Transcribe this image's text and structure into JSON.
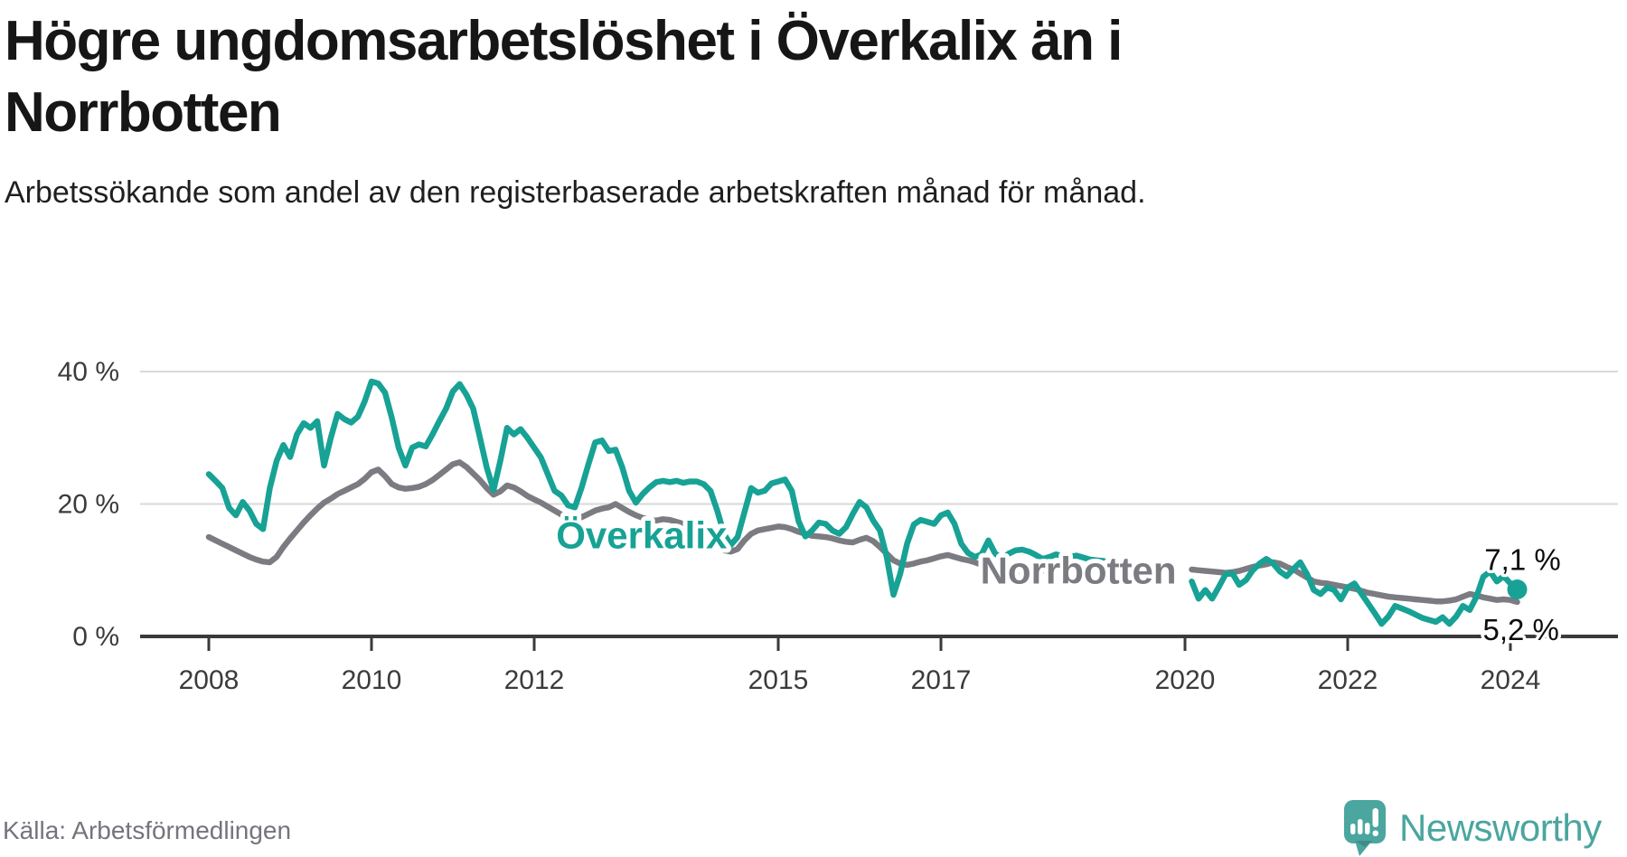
{
  "header": {
    "title_line1": "Högre ungdomsarbetslöshet i Överkalix än i",
    "title_line2": "Norrbotten",
    "subtitle": "Arbetssökande som andel av den registerbaserade arbetskraften månad för månad."
  },
  "footer": {
    "source": "Källa: Arbetsförmedlingen",
    "brand": "Newsworthy"
  },
  "colors": {
    "overkalix": "#17a295",
    "norrbotten": "#7b7b82",
    "grid": "#d9d9d9",
    "axis": "#3a3a3a",
    "tick_text": "#3b3b3b",
    "end_label": "#0d0d0d",
    "logo_teal": "#4aa69f"
  },
  "chart_data": {
    "type": "line",
    "title": "Högre ungdomsarbetslöshet i Överkalix än i Norrbotten",
    "subtitle": "Arbetssökande som andel av den registerbaserade arbetskraften månad för månad.",
    "unit": "%",
    "x_axis": {
      "ticks": [
        2008,
        2010,
        2012,
        2015,
        2017,
        2020,
        2022,
        2024
      ],
      "range": [
        2007.15,
        2025.3
      ]
    },
    "y_axis": {
      "ticks": [
        {
          "value": 0,
          "label": "0 %"
        },
        {
          "value": 20,
          "label": "20 %"
        },
        {
          "value": 40,
          "label": "40 %"
        }
      ],
      "range": [
        0,
        42
      ],
      "grid": true
    },
    "data_gap_note": "no data between Jan 2019 and Feb 2020",
    "series": [
      {
        "name": "Norrbotten",
        "color": "#7b7b82",
        "end_dot": false,
        "segments": [
          {
            "start_year": 2008,
            "start_month": 1,
            "values": [
              15.0,
              14.5,
              14.0,
              13.5,
              13.0,
              12.5,
              12.0,
              11.6,
              11.3,
              11.2,
              12.0,
              13.5,
              14.8,
              16.0,
              17.2,
              18.3,
              19.3,
              20.2,
              20.8,
              21.5,
              22.0,
              22.5,
              23.0,
              23.8,
              24.8,
              25.2,
              24.2,
              23.0,
              22.5,
              22.3,
              22.4,
              22.6,
              23.0,
              23.6,
              24.4,
              25.2,
              26.0,
              26.3,
              25.6,
              24.6,
              23.6,
              22.4,
              21.4,
              21.9,
              22.8,
              22.5,
              21.9,
              21.2,
              20.7,
              20.2,
              19.6,
              19.0,
              18.4,
              17.9,
              17.7,
              18.0,
              18.5,
              19.0,
              19.3,
              19.5,
              20.0,
              19.4,
              18.8,
              18.3,
              17.9,
              17.6,
              17.5,
              17.7,
              17.6,
              17.3,
              17.0,
              16.7,
              16.5,
              15.8,
              15.0,
              13.8,
              13.0,
              12.8,
              13.2,
              14.5,
              15.5,
              16.0,
              16.2,
              16.4,
              16.6,
              16.5,
              16.2,
              15.8,
              15.5,
              15.2,
              15.1,
              15.0,
              14.8,
              14.5,
              14.3,
              14.2,
              14.6,
              14.9,
              14.4,
              13.5,
              12.5,
              11.5,
              11.0,
              10.8,
              11.0,
              11.3,
              11.5,
              11.8,
              12.1,
              12.3,
              12.0,
              11.7,
              11.5,
              11.2,
              10.8,
              10.5,
              10.2,
              9.9,
              9.7,
              9.6,
              9.6,
              9.7,
              9.8,
              9.9,
              10.0,
              10.1,
              10.2,
              10.2,
              10.3,
              10.3,
              10.4,
              10.4,
              10.4
            ]
          },
          {
            "start_year": 2020,
            "start_month": 2,
            "values": [
              10.1,
              10.0,
              9.9,
              9.8,
              9.7,
              9.6,
              9.7,
              9.9,
              10.2,
              10.5,
              10.7,
              10.9,
              11.2,
              11.0,
              10.5,
              10.1,
              9.5,
              8.9,
              8.3,
              8.1,
              8.0,
              7.8,
              7.6,
              7.4,
              7.2,
              6.9,
              6.6,
              6.4,
              6.2,
              6.0,
              5.9,
              5.8,
              5.7,
              5.6,
              5.5,
              5.4,
              5.3,
              5.3,
              5.4,
              5.6,
              6.0,
              6.4,
              6.2,
              5.9,
              5.7,
              5.5,
              5.6,
              5.5,
              5.2
            ]
          }
        ]
      },
      {
        "name": "Överkalix",
        "color": "#17a295",
        "end_dot": true,
        "segments": [
          {
            "start_year": 2008,
            "start_month": 1,
            "values": [
              24.5,
              23.5,
              22.4,
              19.4,
              18.3,
              20.3,
              19.0,
              17.0,
              16.2,
              22.4,
              26.5,
              28.9,
              27.1,
              30.5,
              32.2,
              31.5,
              32.5,
              25.8,
              30.0,
              33.6,
              32.8,
              32.3,
              33.2,
              35.5,
              38.5,
              38.2,
              36.8,
              33.0,
              28.5,
              25.8,
              28.5,
              29.0,
              28.7,
              30.5,
              32.5,
              34.4,
              37.0,
              38.1,
              36.5,
              34.4,
              30.0,
              25.5,
              22.1,
              26.5,
              31.5,
              30.5,
              31.3,
              30.0,
              28.5,
              27.0,
              24.5,
              22.0,
              21.3,
              19.8,
              19.5,
              22.5,
              26.0,
              29.3,
              29.6,
              28.0,
              28.2,
              25.5,
              22.0,
              20.2,
              21.5,
              22.5,
              23.3,
              23.5,
              23.3,
              23.5,
              23.2,
              23.4,
              23.4,
              23.0,
              22.0,
              19.0,
              15.5,
              13.8,
              15.0,
              18.7,
              22.4,
              21.7,
              22.0,
              23.1,
              23.4,
              23.7,
              22.0,
              17.4,
              15.1,
              16.0,
              17.2,
              17.0,
              16.0,
              15.5,
              16.5,
              18.5,
              20.3,
              19.5,
              17.5,
              16.0,
              12.0,
              6.3,
              9.5,
              14.0,
              16.9,
              17.6,
              17.3,
              17.0,
              18.3,
              18.7,
              17.0,
              14.0,
              12.6,
              12.0,
              12.4,
              14.5,
              12.5,
              11.8,
              12.5,
              13.0,
              13.1,
              12.8,
              12.3,
              11.7,
              12.0,
              12.4,
              12.1,
              12.0,
              12.2,
              11.9,
              11.6,
              11.5,
              11.4
            ]
          },
          {
            "start_year": 2020,
            "start_month": 2,
            "values": [
              8.3,
              5.7,
              7.0,
              5.7,
              7.5,
              9.4,
              9.5,
              7.8,
              8.5,
              10.0,
              11.0,
              11.7,
              11.0,
              9.8,
              9.1,
              10.2,
              11.2,
              9.4,
              7.0,
              6.4,
              7.4,
              7.0,
              5.6,
              7.4,
              8.0,
              6.5,
              5.0,
              3.5,
              1.9,
              3.0,
              4.6,
              4.2,
              3.8,
              3.3,
              2.8,
              2.5,
              2.2,
              2.9,
              1.9,
              3.0,
              4.6,
              4.0,
              6.0,
              9.0,
              9.8,
              8.3,
              9.1,
              8.0,
              7.1
            ]
          }
        ]
      }
    ],
    "annotations": [
      {
        "id": "label-overkalix",
        "text": "Överkalix",
        "t": 2013.32,
        "v": 15.3,
        "color": "#17a295",
        "size": 42,
        "weight": "bold",
        "halo": 10
      },
      {
        "id": "label-norrbotten",
        "text": "Norrbotten",
        "t": 2018.69,
        "v": 10.0,
        "color": "#7b7b82",
        "size": 42,
        "weight": "bold",
        "halo": 10
      },
      {
        "id": "end-value-overkalix",
        "text": "7,1 %",
        "t": 2024.15,
        "v": 11.6,
        "color": "#0d0d0d",
        "size": 33,
        "weight": "normal",
        "halo": 7
      },
      {
        "id": "end-value-norrbotten",
        "text": "5,2 %",
        "t": 2024.13,
        "v": 1.0,
        "color": "#0d0d0d",
        "size": 33,
        "weight": "normal",
        "halo": 7
      }
    ],
    "end_values": {
      "overkalix": "7,1 %",
      "norrbotten": "5,2 %"
    }
  }
}
